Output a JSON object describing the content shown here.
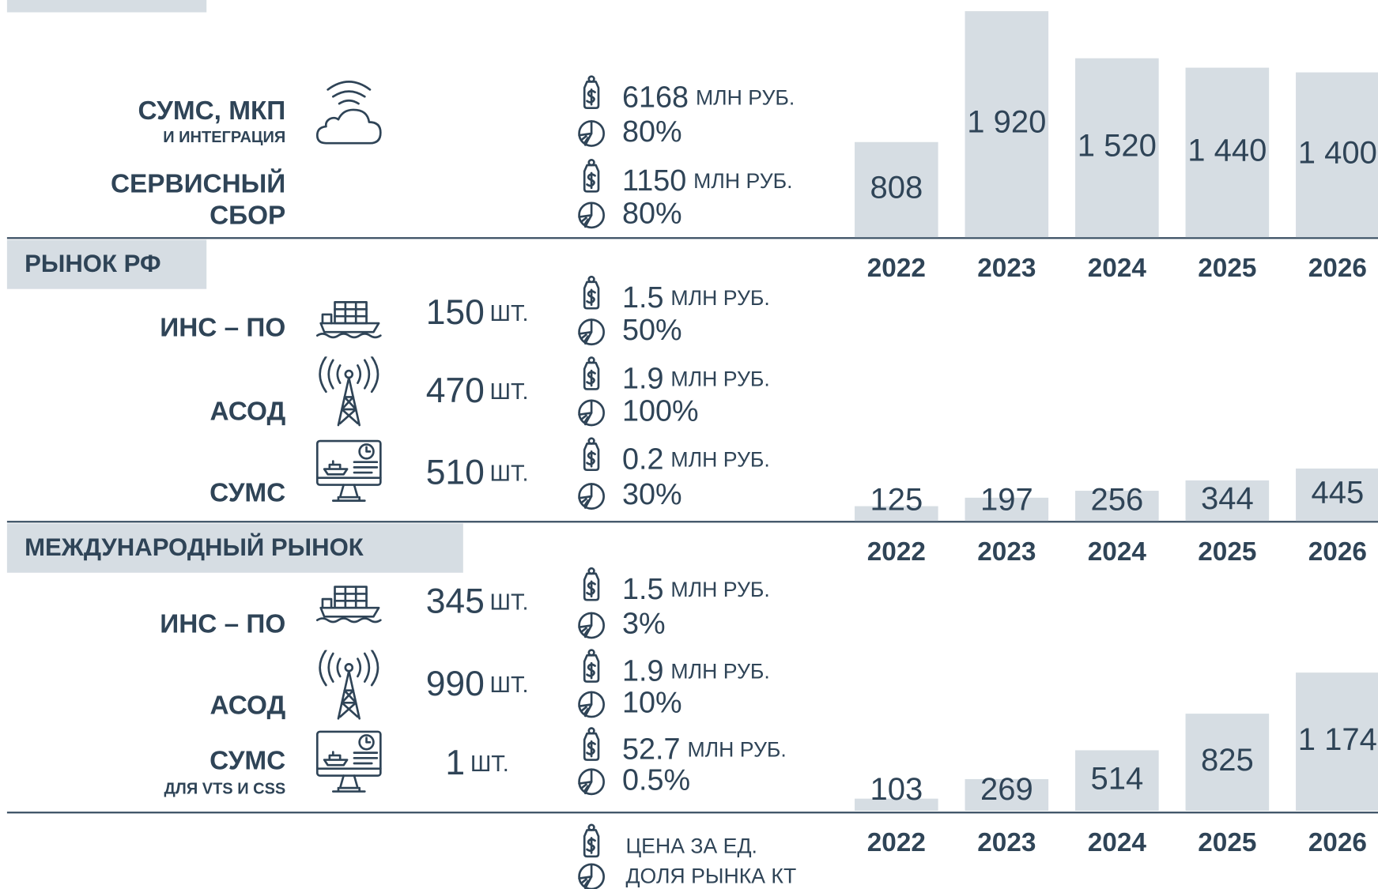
{
  "top_section": {
    "rows": [
      {
        "name": [
          "СУМС, МКП"
        ],
        "subname": "И ИНТЕГРАЦИЯ",
        "price": "6168",
        "price_unit": "МЛН РУБ.",
        "share": "80%"
      },
      {
        "name": [
          "СЕРВИСНЫЙ",
          "СБОР"
        ],
        "price": "1150",
        "price_unit": "МЛН РУБ.",
        "share": "80%"
      }
    ]
  },
  "sections": [
    {
      "header": "РЫНОК РФ",
      "rows": [
        {
          "name": [
            "ИНС – ПО"
          ],
          "count": "150",
          "count_unit": "ШТ.",
          "price": "1.5",
          "price_unit": "МЛН РУБ.",
          "share": "50%"
        },
        {
          "name": [
            "АСОД"
          ],
          "count": "470",
          "count_unit": "ШТ.",
          "price": "1.9",
          "price_unit": "МЛН РУБ.",
          "share": "100%"
        },
        {
          "name": [
            "СУМС"
          ],
          "count": "510",
          "count_unit": "ШТ.",
          "price": "0.2",
          "price_unit": "МЛН РУБ.",
          "share": "30%"
        }
      ]
    },
    {
      "header": "МЕЖДУНАРОДНЫЙ РЫНОК",
      "rows": [
        {
          "name": [
            "ИНС – ПО"
          ],
          "count": "345",
          "count_unit": "ШТ.",
          "price": "1.5",
          "price_unit": "МЛН РУБ.",
          "share": "3%"
        },
        {
          "name": [
            "АСОД"
          ],
          "count": "990",
          "count_unit": "ШТ.",
          "price": "1.9",
          "price_unit": "МЛН РУБ.",
          "share": "10%"
        },
        {
          "name": [
            "СУМС"
          ],
          "subname": "ДЛЯ VTS И CSS",
          "count": "1",
          "count_unit": "ШТ.",
          "price": "52.7",
          "price_unit": "МЛН РУБ.",
          "share": "0.5%"
        }
      ]
    }
  ],
  "legend": {
    "price": "ЦЕНА ЗА ЕД.",
    "share": "ДОЛЯ РЫНКА КТ"
  },
  "chart_data": [
    {
      "type": "bar",
      "color": "#d6dde3",
      "categories": [
        "2022",
        "2023",
        "2024",
        "2025",
        "2026"
      ],
      "values": [
        808,
        1920,
        1520,
        1440,
        1400
      ],
      "value_labels": [
        "808",
        "1 920",
        "1 520",
        "1 440",
        "1 400"
      ]
    },
    {
      "type": "bar",
      "color": "#d6dde3",
      "categories": [
        "2022",
        "2023",
        "2024",
        "2025",
        "2026"
      ],
      "values": [
        125,
        197,
        256,
        344,
        445
      ],
      "value_labels": [
        "125",
        "197",
        "256",
        "344",
        "445"
      ]
    },
    {
      "type": "bar",
      "color": "#d6dde3",
      "categories": [
        "2022",
        "2023",
        "2024",
        "2025",
        "2026"
      ],
      "values": [
        103,
        269,
        514,
        825,
        1174
      ],
      "value_labels": [
        "103",
        "269",
        "514",
        "825",
        "1 174"
      ]
    }
  ]
}
